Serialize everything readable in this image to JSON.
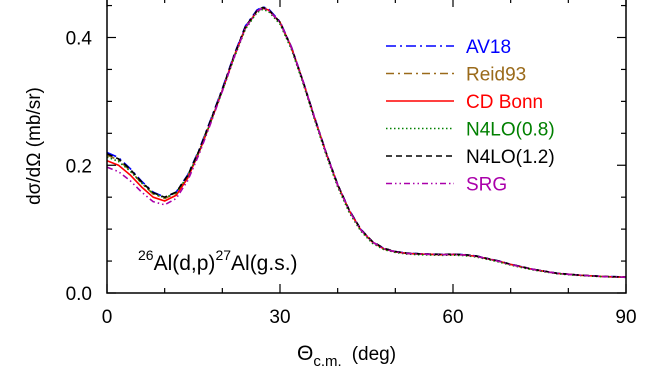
{
  "chart_data": {
    "type": "line",
    "xlabel": "Θ",
    "xlabel_sub": "c.m.",
    "xlabel_unit": "(deg)",
    "ylabel": "dσ/dΩ  (mb/sr)",
    "xlim": [
      0,
      90
    ],
    "ylim": [
      0,
      0.45
    ],
    "x_ticks": [
      0,
      30,
      60,
      90
    ],
    "x_tick_labels": [
      "0",
      "30",
      "60",
      "90"
    ],
    "y_ticks": [
      0.0,
      0.2,
      0.4
    ],
    "y_tick_labels": [
      "0.0",
      "0.2",
      "0.4"
    ],
    "grid": false,
    "legend_position": "top-right",
    "annotation": {
      "pre_sup": "26",
      "mid": "Al(d,p)",
      "mid_sup": "27",
      "post": "Al(g.s.)"
    },
    "series": [
      {
        "name": "AV18",
        "color": "#0000ff",
        "dash": "10,4,2,4",
        "x": [
          0,
          2,
          4,
          6,
          8,
          10,
          12,
          14,
          16,
          18,
          20,
          22,
          24,
          26,
          27,
          28,
          30,
          32,
          34,
          36,
          38,
          40,
          42,
          44,
          46,
          48,
          50,
          52,
          54,
          56,
          58,
          60,
          62,
          64,
          66,
          68,
          70,
          72,
          74,
          76,
          78,
          80,
          82,
          84,
          86,
          88,
          90
        ],
        "y": [
          0.22,
          0.212,
          0.195,
          0.175,
          0.158,
          0.15,
          0.158,
          0.185,
          0.225,
          0.272,
          0.32,
          0.372,
          0.418,
          0.443,
          0.448,
          0.445,
          0.425,
          0.385,
          0.332,
          0.275,
          0.22,
          0.17,
          0.13,
          0.1,
          0.08,
          0.07,
          0.065,
          0.0625,
          0.0615,
          0.061,
          0.0605,
          0.0608,
          0.06,
          0.058,
          0.054,
          0.05,
          0.045,
          0.041,
          0.037,
          0.034,
          0.031,
          0.0295,
          0.028,
          0.027,
          0.026,
          0.0255,
          0.025
        ]
      },
      {
        "name": "Reid93",
        "color": "#9a6a1a",
        "dash": "8,4,2,4",
        "x": [
          0,
          2,
          4,
          6,
          8,
          10,
          12,
          14,
          16,
          18,
          20,
          22,
          24,
          26,
          27,
          28,
          30,
          32,
          34,
          36,
          38,
          40,
          42,
          44,
          46,
          48,
          50,
          52,
          54,
          56,
          58,
          60,
          62,
          64,
          66,
          68,
          70,
          72,
          74,
          76,
          78,
          80,
          82,
          84,
          86,
          88,
          90
        ],
        "y": [
          0.216,
          0.208,
          0.192,
          0.172,
          0.155,
          0.148,
          0.156,
          0.183,
          0.223,
          0.27,
          0.318,
          0.37,
          0.416,
          0.441,
          0.446,
          0.443,
          0.423,
          0.383,
          0.33,
          0.273,
          0.219,
          0.169,
          0.129,
          0.099,
          0.08,
          0.069,
          0.0645,
          0.062,
          0.061,
          0.0605,
          0.06,
          0.0603,
          0.0595,
          0.0575,
          0.0535,
          0.0495,
          0.0447,
          0.0405,
          0.0367,
          0.0337,
          0.0307,
          0.0292,
          0.0278,
          0.0268,
          0.0258,
          0.0252,
          0.0248
        ]
      },
      {
        "name": "CD Bonn",
        "color": "#ff0000",
        "dash": "",
        "x": [
          0,
          2,
          4,
          6,
          8,
          10,
          12,
          14,
          16,
          18,
          20,
          22,
          24,
          26,
          27,
          28,
          30,
          32,
          34,
          36,
          38,
          40,
          42,
          44,
          46,
          48,
          50,
          52,
          54,
          56,
          58,
          60,
          62,
          64,
          66,
          68,
          70,
          72,
          74,
          76,
          78,
          80,
          82,
          84,
          86,
          88,
          90
        ],
        "y": [
          0.207,
          0.2,
          0.185,
          0.166,
          0.15,
          0.144,
          0.153,
          0.18,
          0.221,
          0.268,
          0.317,
          0.369,
          0.415,
          0.441,
          0.446,
          0.443,
          0.424,
          0.384,
          0.331,
          0.274,
          0.219,
          0.169,
          0.129,
          0.099,
          0.08,
          0.069,
          0.0645,
          0.062,
          0.061,
          0.0605,
          0.06,
          0.0603,
          0.0595,
          0.0575,
          0.0535,
          0.0495,
          0.0447,
          0.0405,
          0.0367,
          0.0337,
          0.0307,
          0.0292,
          0.0278,
          0.0268,
          0.0258,
          0.0252,
          0.0248
        ]
      },
      {
        "name": "N4LO(0.8)",
        "color": "#008000",
        "dash": "1.5,2.5",
        "x": [
          0,
          2,
          4,
          6,
          8,
          10,
          12,
          14,
          16,
          18,
          20,
          22,
          24,
          26,
          27,
          28,
          30,
          32,
          34,
          36,
          38,
          40,
          42,
          44,
          46,
          48,
          50,
          52,
          54,
          56,
          58,
          60,
          62,
          64,
          66,
          68,
          70,
          72,
          74,
          76,
          78,
          80,
          82,
          84,
          86,
          88,
          90
        ],
        "y": [
          0.213,
          0.206,
          0.191,
          0.172,
          0.156,
          0.149,
          0.157,
          0.183,
          0.222,
          0.268,
          0.316,
          0.367,
          0.413,
          0.439,
          0.444,
          0.441,
          0.421,
          0.381,
          0.328,
          0.271,
          0.216,
          0.166,
          0.126,
          0.097,
          0.078,
          0.068,
          0.0635,
          0.061,
          0.06,
          0.0595,
          0.059,
          0.0593,
          0.0585,
          0.0565,
          0.0525,
          0.0485,
          0.0437,
          0.0397,
          0.0359,
          0.033,
          0.0302,
          0.0287,
          0.0274,
          0.0264,
          0.0255,
          0.0249,
          0.0245
        ]
      },
      {
        "name": "N4LO(1.2)",
        "color": "#000000",
        "dash": "6,4",
        "x": [
          0,
          2,
          4,
          6,
          8,
          10,
          12,
          14,
          16,
          18,
          20,
          22,
          24,
          26,
          27,
          28,
          30,
          32,
          34,
          36,
          38,
          40,
          42,
          44,
          46,
          48,
          50,
          52,
          54,
          56,
          58,
          60,
          62,
          64,
          66,
          68,
          70,
          72,
          74,
          76,
          78,
          80,
          82,
          84,
          86,
          88,
          90
        ],
        "y": [
          0.218,
          0.21,
          0.194,
          0.174,
          0.157,
          0.15,
          0.158,
          0.184,
          0.224,
          0.271,
          0.319,
          0.371,
          0.417,
          0.442,
          0.447,
          0.444,
          0.424,
          0.384,
          0.331,
          0.274,
          0.22,
          0.17,
          0.13,
          0.1,
          0.081,
          0.07,
          0.065,
          0.0625,
          0.0615,
          0.061,
          0.0605,
          0.0608,
          0.06,
          0.058,
          0.054,
          0.05,
          0.045,
          0.041,
          0.037,
          0.034,
          0.031,
          0.0295,
          0.028,
          0.027,
          0.026,
          0.0255,
          0.025
        ]
      },
      {
        "name": "SRG",
        "color": "#aa00aa",
        "dash": "6,3,1.5,3,1.5,3",
        "x": [
          0,
          2,
          4,
          6,
          8,
          10,
          12,
          14,
          16,
          18,
          20,
          22,
          24,
          26,
          27,
          28,
          30,
          32,
          34,
          36,
          38,
          40,
          42,
          44,
          46,
          48,
          50,
          52,
          54,
          56,
          58,
          60,
          62,
          64,
          66,
          68,
          70,
          72,
          74,
          76,
          78,
          80,
          82,
          84,
          86,
          88,
          90
        ],
        "y": [
          0.197,
          0.19,
          0.176,
          0.158,
          0.143,
          0.138,
          0.148,
          0.176,
          0.218,
          0.266,
          0.316,
          0.368,
          0.415,
          0.441,
          0.446,
          0.443,
          0.424,
          0.384,
          0.331,
          0.274,
          0.219,
          0.169,
          0.129,
          0.099,
          0.08,
          0.069,
          0.0645,
          0.062,
          0.061,
          0.0605,
          0.06,
          0.0603,
          0.0595,
          0.0575,
          0.0535,
          0.0495,
          0.0447,
          0.0405,
          0.0367,
          0.0337,
          0.0307,
          0.0292,
          0.0278,
          0.0268,
          0.0258,
          0.0252,
          0.0248
        ]
      }
    ]
  }
}
